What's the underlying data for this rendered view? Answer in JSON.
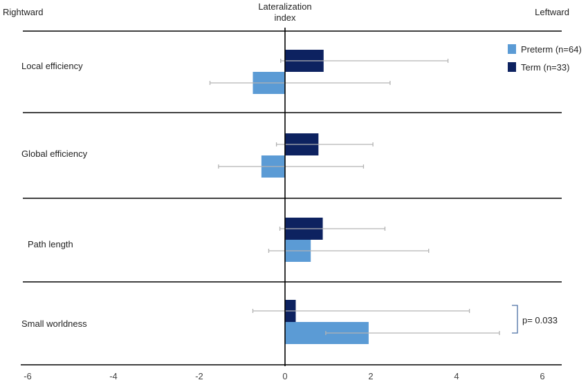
{
  "chart_data": {
    "type": "bar",
    "orientation": "horizontal",
    "title": "Lateralization index",
    "left_label": "Rightward",
    "right_label": "Leftward",
    "categories": [
      "Local efficiency",
      "Global efficiency",
      "Path length",
      "Small worldness"
    ],
    "series": [
      {
        "name": "Term (n=33)",
        "color": "#0d2260",
        "values": [
          0.9,
          0.78,
          0.88,
          0.25
        ],
        "error_low": [
          -0.1,
          -0.2,
          -0.12,
          -0.75
        ],
        "error_high": [
          3.8,
          2.05,
          2.33,
          4.3
        ]
      },
      {
        "name": "Preterm (n=64)",
        "color": "#5b9bd5",
        "values": [
          -0.75,
          -0.55,
          0.6,
          1.95
        ],
        "error_low": [
          -1.75,
          -1.55,
          -0.38,
          0.95
        ],
        "error_high": [
          2.45,
          1.83,
          3.35,
          5.0
        ]
      }
    ],
    "error_color": "#b3b3b3",
    "xlim": [
      -6,
      6
    ],
    "xticks": [
      -6,
      -4,
      -2,
      0,
      2,
      4,
      6
    ],
    "grid": false,
    "legend_position": "top-right",
    "annotation": {
      "text": "p= 0.033",
      "category": "Small worldness"
    }
  }
}
